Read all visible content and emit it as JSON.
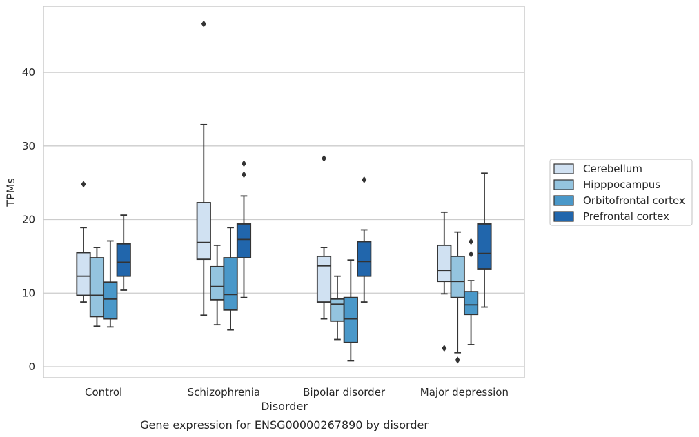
{
  "chart_data": {
    "type": "boxplot",
    "xlabel": "Disorder",
    "ylabel": "TPMs",
    "caption": "Gene expression for ENSG00000267890 by disorder",
    "ylim": [
      -1.5,
      49
    ],
    "yticks": [
      0,
      10,
      20,
      30,
      40
    ],
    "grid": "horizontal",
    "legend_position": "right",
    "categories": [
      "Control",
      "Schizophrenia",
      "Bipolar disorder",
      "Major depression"
    ],
    "series": [
      {
        "name": "Cerebellum",
        "color": "#d0e1f2",
        "boxes": [
          {
            "whislo": 8.8,
            "q1": 9.7,
            "med": 12.3,
            "q3": 15.5,
            "whishi": 18.9,
            "fliers": [
              24.8
            ]
          },
          {
            "whislo": 7.0,
            "q1": 14.6,
            "med": 16.9,
            "q3": 22.3,
            "whishi": 32.9,
            "fliers": [
              46.6
            ]
          },
          {
            "whislo": 6.5,
            "q1": 8.8,
            "med": 13.7,
            "q3": 15.0,
            "whishi": 16.2,
            "fliers": [
              28.3
            ]
          },
          {
            "whislo": 9.9,
            "q1": 11.6,
            "med": 13.1,
            "q3": 16.5,
            "whishi": 21.0,
            "fliers": [
              2.5
            ]
          }
        ]
      },
      {
        "name": "Hipppocampus",
        "color": "#94c4df",
        "boxes": [
          {
            "whislo": 5.5,
            "q1": 6.8,
            "med": 9.7,
            "q3": 14.8,
            "whishi": 16.2,
            "fliers": []
          },
          {
            "whislo": 5.7,
            "q1": 9.1,
            "med": 10.9,
            "q3": 13.6,
            "whishi": 16.5,
            "fliers": []
          },
          {
            "whislo": 3.7,
            "q1": 6.2,
            "med": 8.5,
            "q3": 9.2,
            "whishi": 12.3,
            "fliers": []
          },
          {
            "whislo": 1.9,
            "q1": 9.4,
            "med": 11.6,
            "q3": 15.0,
            "whishi": 18.3,
            "fliers": [
              0.9
            ]
          }
        ]
      },
      {
        "name": "Orbitofrontal cortex",
        "color": "#4a98c9",
        "boxes": [
          {
            "whislo": 5.4,
            "q1": 6.5,
            "med": 9.2,
            "q3": 11.5,
            "whishi": 17.1,
            "fliers": []
          },
          {
            "whislo": 5.0,
            "q1": 7.7,
            "med": 9.8,
            "q3": 14.8,
            "whishi": 18.9,
            "fliers": []
          },
          {
            "whislo": 0.8,
            "q1": 3.3,
            "med": 6.5,
            "q3": 9.4,
            "whishi": 14.5,
            "fliers": []
          },
          {
            "whislo": 3.0,
            "q1": 7.1,
            "med": 8.4,
            "q3": 10.2,
            "whishi": 11.7,
            "fliers": [
              15.3,
              17.0
            ]
          }
        ]
      },
      {
        "name": "Prefrontal cortex",
        "color": "#2166ac",
        "boxes": [
          {
            "whislo": 10.4,
            "q1": 12.3,
            "med": 14.2,
            "q3": 16.7,
            "whishi": 20.6,
            "fliers": []
          },
          {
            "whislo": 9.4,
            "q1": 14.8,
            "med": 17.3,
            "q3": 19.4,
            "whishi": 23.2,
            "fliers": [
              26.1,
              27.6
            ]
          },
          {
            "whislo": 8.8,
            "q1": 12.3,
            "med": 14.3,
            "q3": 17.0,
            "whishi": 18.6,
            "fliers": [
              25.4
            ]
          },
          {
            "whislo": 8.1,
            "q1": 13.3,
            "med": 15.4,
            "q3": 19.4,
            "whishi": 26.3,
            "fliers": []
          }
        ]
      }
    ],
    "styles": {
      "edge": "#333333",
      "grid": "#cccccc",
      "frame": "#cccccc"
    }
  }
}
